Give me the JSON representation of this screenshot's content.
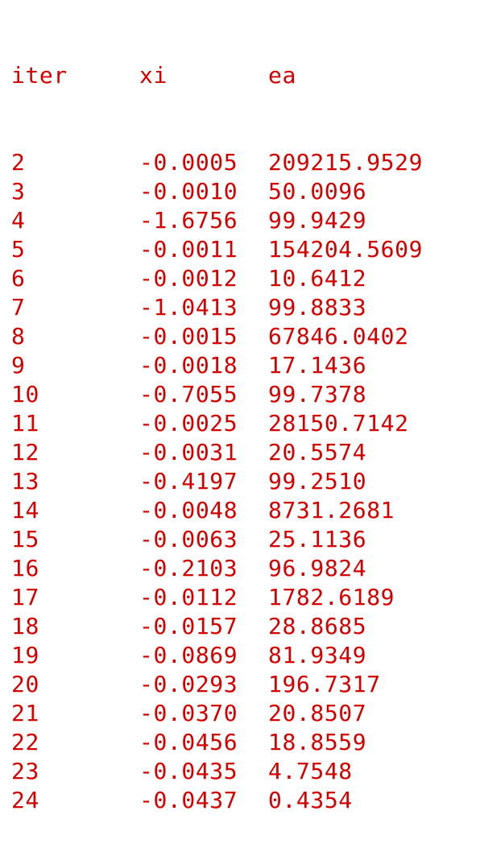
{
  "output": {
    "headers": {
      "iter": "iter",
      "xi": "xi",
      "ea": "ea"
    },
    "rows": [
      {
        "iter": "2",
        "xi": "-0.0005",
        "ea": "209215.9529"
      },
      {
        "iter": "3",
        "xi": "-0.0010",
        "ea": "50.0096"
      },
      {
        "iter": "4",
        "xi": "-1.6756",
        "ea": "99.9429"
      },
      {
        "iter": "5",
        "xi": "-0.0011",
        "ea": "154204.5609"
      },
      {
        "iter": "6",
        "xi": "-0.0012",
        "ea": "10.6412"
      },
      {
        "iter": "7",
        "xi": "-1.0413",
        "ea": "99.8833"
      },
      {
        "iter": "8",
        "xi": "-0.0015",
        "ea": "67846.0402"
      },
      {
        "iter": "9",
        "xi": "-0.0018",
        "ea": "17.1436"
      },
      {
        "iter": "10",
        "xi": "-0.7055",
        "ea": "99.7378"
      },
      {
        "iter": "11",
        "xi": "-0.0025",
        "ea": "28150.7142"
      },
      {
        "iter": "12",
        "xi": "-0.0031",
        "ea": "20.5574"
      },
      {
        "iter": "13",
        "xi": "-0.4197",
        "ea": "99.2510"
      },
      {
        "iter": "14",
        "xi": "-0.0048",
        "ea": "8731.2681"
      },
      {
        "iter": "15",
        "xi": "-0.0063",
        "ea": "25.1136"
      },
      {
        "iter": "16",
        "xi": "-0.2103",
        "ea": "96.9824"
      },
      {
        "iter": "17",
        "xi": "-0.0112",
        "ea": "1782.6189"
      },
      {
        "iter": "18",
        "xi": "-0.0157",
        "ea": "28.8685"
      },
      {
        "iter": "19",
        "xi": "-0.0869",
        "ea": "81.9349"
      },
      {
        "iter": "20",
        "xi": "-0.0293",
        "ea": "196.7317"
      },
      {
        "iter": "21",
        "xi": "-0.0370",
        "ea": "20.8507"
      },
      {
        "iter": "22",
        "xi": "-0.0456",
        "ea": "18.8559"
      },
      {
        "iter": "23",
        "xi": "-0.0435",
        "ea": "4.7548"
      },
      {
        "iter": "24",
        "xi": "-0.0437",
        "ea": "0.4354"
      }
    ]
  },
  "colors": {
    "text": "#d40000",
    "background": "#ffffff"
  }
}
